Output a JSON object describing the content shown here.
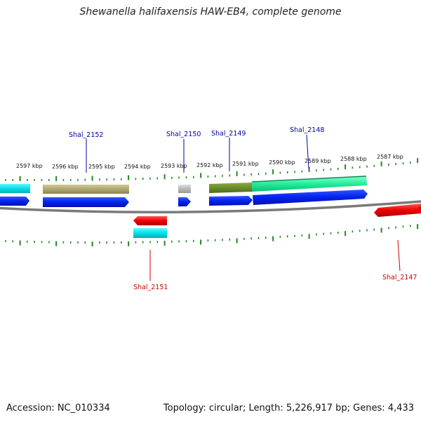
{
  "title": "Shewanella halifaxensis HAW-EB4, complete genome",
  "accession": "Accession: NC_010334",
  "summary": "Topology: circular; Length: 5,226,917 bp; Genes: 4,433",
  "scale_ticks": [
    {
      "label": "2597 kbp",
      "kbp": 2597
    },
    {
      "label": "2596 kbp",
      "kbp": 2596
    },
    {
      "label": "2595 kbp",
      "kbp": 2595
    },
    {
      "label": "2594 kbp",
      "kbp": 2594
    },
    {
      "label": "2593 kbp",
      "kbp": 2593
    },
    {
      "label": "2592 kbp",
      "kbp": 2592
    },
    {
      "label": "2591 kbp",
      "kbp": 2591
    },
    {
      "label": "2590 kbp",
      "kbp": 2590
    },
    {
      "label": "2589 kbp",
      "kbp": 2589
    },
    {
      "label": "2588 kbp",
      "kbp": 2588
    },
    {
      "label": "2587 kbp",
      "kbp": 2587
    }
  ],
  "gene_labels": [
    {
      "text": "Shal_2152",
      "strand": "forward"
    },
    {
      "text": "Shal_2150",
      "strand": "forward"
    },
    {
      "text": "Shal_2149",
      "strand": "forward"
    },
    {
      "text": "Shal_2148",
      "strand": "forward"
    },
    {
      "text": "Shal_2151",
      "strand": "reverse"
    },
    {
      "text": "Shal_2147",
      "strand": "reverse"
    }
  ],
  "colors": {
    "forward_label": "#0000aa",
    "reverse_label": "#cc0000",
    "tick": "#228822",
    "backbone": "#808080",
    "gene_blue": "#0022ee",
    "gene_red": "#ee0000",
    "gene_cyan": "#00e0e8",
    "feature_khaki": "#b0a870",
    "feature_olive": "#6b8c2a",
    "feature_mint": "#22ee99",
    "feature_gray": "#b8b8b8"
  }
}
